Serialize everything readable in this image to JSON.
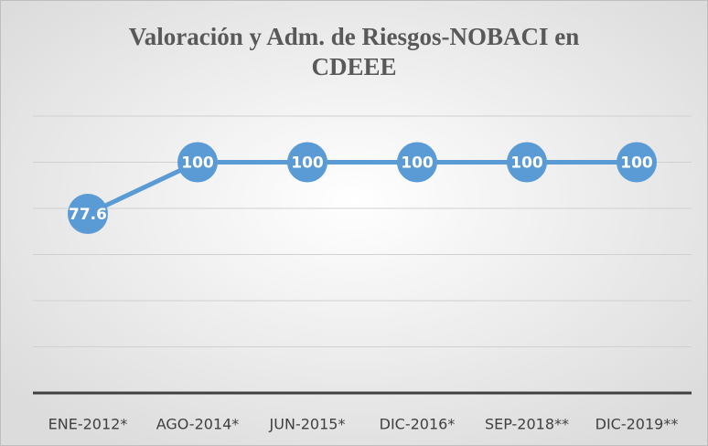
{
  "chart_data": {
    "type": "line",
    "title": "Valoración y Adm. de Riesgos-NOBACI en CDEEE",
    "categories": [
      "ENE-2012*",
      "AGO-2014*",
      "JUN-2015*",
      "DIC-2016*",
      "SEP-2018**",
      "DIC-2019**"
    ],
    "series": [
      {
        "name": "NOBACI",
        "color": "#5b9bd5",
        "values": [
          77.6,
          100,
          100,
          100,
          100,
          100
        ]
      }
    ],
    "ylim": [
      0,
      120
    ],
    "yticks": [
      0,
      20,
      40,
      60,
      80,
      100,
      120
    ],
    "grid": true
  }
}
